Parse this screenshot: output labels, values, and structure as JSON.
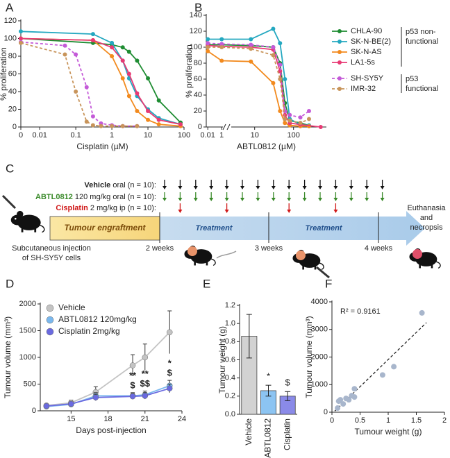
{
  "panel_labels": [
    "A",
    "B",
    "C",
    "D",
    "E",
    "F"
  ],
  "chart_data": [
    {
      "type": "line",
      "y_label": "% proliferation",
      "x_label": "Cisplatin (µM)",
      "xscale": "log",
      "xlim": [
        0.003,
        100
      ],
      "xticks": [
        {
          "value": 0,
          "label": "0"
        },
        0.01,
        0.1,
        1,
        10,
        100
      ],
      "ylim": [
        0,
        120
      ],
      "yticks": [
        0,
        20,
        40,
        60,
        80,
        100,
        120
      ],
      "series": [
        {
          "color": "#1e8c32",
          "dash": false,
          "x": [
            0,
            0.3,
            1,
            2,
            3,
            5,
            10,
            20,
            80
          ],
          "values": [
            100,
            95,
            93,
            90,
            85,
            75,
            55,
            30,
            5
          ]
        },
        {
          "color": "#24a8c0",
          "dash": false,
          "x": [
            0,
            0.3,
            1,
            2,
            3,
            5,
            10,
            20,
            80
          ],
          "values": [
            108,
            105,
            95,
            75,
            55,
            35,
            20,
            10,
            3
          ]
        },
        {
          "color": "#f28a1e",
          "dash": false,
          "x": [
            0,
            0.3,
            1,
            2,
            3,
            5,
            10,
            20,
            80
          ],
          "values": [
            100,
            98,
            80,
            55,
            35,
            18,
            8,
            3,
            1
          ]
        },
        {
          "color": "#e83a74",
          "dash": false,
          "x": [
            0,
            0.3,
            1,
            2,
            3,
            5,
            10,
            20,
            80
          ],
          "values": [
            100,
            98,
            90,
            75,
            60,
            38,
            18,
            8,
            3
          ]
        },
        {
          "color": "#c45ad8",
          "dash": true,
          "x": [
            0,
            0.05,
            0.1,
            0.2,
            0.3,
            0.5,
            1,
            2,
            5
          ],
          "values": [
            96,
            92,
            82,
            45,
            12,
            4,
            2,
            1,
            1
          ]
        },
        {
          "color": "#c8945a",
          "dash": true,
          "x": [
            0,
            0.05,
            0.1,
            0.2,
            0.3,
            0.5,
            1,
            2,
            5
          ],
          "values": [
            95,
            82,
            40,
            6,
            2,
            1,
            1,
            1,
            1
          ]
        }
      ]
    },
    {
      "type": "line",
      "y_label": "% proliferation",
      "x_label": "ABTL0812 (µM)",
      "xscale": "log",
      "xlim": [
        0.006,
        700
      ],
      "xlim_segments": [
        [
          0.006,
          1.5
        ],
        [
          2.5,
          700
        ]
      ],
      "xticks": [
        0.01,
        1,
        10,
        100
      ],
      "ylim": [
        0,
        140
      ],
      "yticks": [
        0,
        20,
        40,
        60,
        80,
        100,
        120,
        140
      ],
      "legend_groups": [
        [
          "p53 non-",
          "functional"
        ],
        [
          "p53",
          "functional"
        ]
      ],
      "series": [
        {
          "name": "CHLA-90",
          "color": "#1e8c32",
          "dash": false,
          "x": [
            0.01,
            1,
            8,
            30,
            45,
            60,
            80,
            150,
            250
          ],
          "values": [
            103,
            103,
            102,
            100,
            80,
            30,
            8,
            5,
            2
          ]
        },
        {
          "name": "SK-N-BE(2)",
          "color": "#24a8c0",
          "dash": false,
          "x": [
            0.01,
            1,
            8,
            30,
            45,
            60,
            80,
            150,
            250
          ],
          "values": [
            110,
            110,
            110,
            123,
            105,
            60,
            10,
            3,
            2
          ]
        },
        {
          "name": "SK-N-AS",
          "color": "#f28a1e",
          "dash": false,
          "x": [
            0.01,
            1,
            8,
            30,
            45,
            60,
            80,
            150,
            250
          ],
          "values": [
            95,
            83,
            82,
            55,
            20,
            5,
            2,
            1,
            1
          ]
        },
        {
          "name": "LA1-5s",
          "color": "#e83a74",
          "dash": false,
          "x": [
            0.01,
            1,
            8,
            30,
            45,
            60,
            80,
            150,
            500
          ],
          "values": [
            102,
            101,
            100,
            97,
            70,
            15,
            5,
            3,
            0
          ]
        },
        {
          "name": "SH-SY5Y",
          "color": "#c45ad8",
          "dash": true,
          "x": [
            0.01,
            1,
            8,
            30,
            45,
            60,
            80,
            150,
            250
          ],
          "values": [
            105,
            104,
            103,
            100,
            78,
            20,
            15,
            12,
            20
          ]
        },
        {
          "name": "IMR-32",
          "color": "#c8945a",
          "dash": true,
          "x": [
            0.01,
            1,
            8,
            30,
            45,
            60,
            80,
            150,
            250
          ],
          "values": [
            100,
            100,
            98,
            90,
            60,
            10,
            8,
            5,
            10
          ]
        }
      ]
    },
    {
      "type": "line",
      "y_label": "Tumour volume (mm³)",
      "x_label": "Days post-injection",
      "x": [
        13,
        15,
        17,
        20,
        21,
        23
      ],
      "xlim": [
        12.5,
        24
      ],
      "xticks": [
        15,
        18,
        21,
        24
      ],
      "ylim": [
        0,
        2000
      ],
      "yticks": [
        0,
        500,
        1000,
        1500,
        2000
      ],
      "series": [
        {
          "name": "Vehicle",
          "color": "#c4c4c4",
          "values": [
            100,
            150,
            350,
            850,
            1000,
            1470
          ],
          "errors": [
            30,
            50,
            100,
            200,
            250,
            400
          ]
        },
        {
          "name": "ABTL0812 120mg/kg",
          "color": "#7ab8ee",
          "values": [
            80,
            120,
            280,
            280,
            300,
            470
          ],
          "errors": [
            25,
            40,
            60,
            60,
            70,
            100
          ]
        },
        {
          "name": "Cisplatin 2mg/kg",
          "color": "#6a6ae0",
          "values": [
            90,
            130,
            250,
            270,
            280,
            420
          ],
          "errors": [
            25,
            40,
            60,
            50,
            60,
            80
          ]
        }
      ],
      "annotations": [
        {
          "x": 20,
          "labels": [
            "**",
            "$"
          ]
        },
        {
          "x": 21,
          "labels": [
            "**",
            "$$"
          ]
        },
        {
          "x": 23,
          "labels": [
            "*",
            "$"
          ]
        }
      ]
    },
    {
      "type": "bar",
      "y_label": "Tumour weight (g)",
      "categories": [
        "Vehicle",
        "ABTL0812",
        "Cisplatin"
      ],
      "values": [
        0.86,
        0.26,
        0.2
      ],
      "errors": [
        0.24,
        0.06,
        0.05
      ],
      "colors": [
        "#d2d2d2",
        "#8cc4f2",
        "#8a8ae8"
      ],
      "value_annotations": [
        null,
        "*",
        "$"
      ],
      "ylim": [
        0,
        1.2
      ],
      "yticks": [
        {
          "value": 0,
          "label": "0.0"
        },
        0.2,
        0.4,
        0.6,
        0.8,
        {
          "value": 1,
          "label": "1.0"
        },
        1.2
      ]
    },
    {
      "type": "scatter",
      "y_label": "Tumour volume (mm³)",
      "x_label": "Tumour weight (g)",
      "note": "R² = 0.9161",
      "trendline": "dashed",
      "color": "#a8b6cc",
      "x": [
        0.1,
        0.12,
        0.15,
        0.2,
        0.25,
        0.3,
        0.35,
        0.4,
        0.4,
        0.9,
        1.1,
        1.6
      ],
      "values": [
        150,
        400,
        450,
        300,
        500,
        450,
        600,
        850,
        550,
        1350,
        1650,
        3600
      ],
      "xlim": [
        0,
        2
      ],
      "xticks": [
        0,
        0.5,
        1,
        1.5,
        2
      ],
      "ylim": [
        0,
        4000
      ],
      "yticks": [
        0,
        1000,
        2000,
        3000,
        4000
      ]
    }
  ],
  "diagram": {
    "rows": [
      {
        "drug": "Vehicle",
        "dose": " oral (n = 10):"
      },
      {
        "drug": "ABTL0812",
        "dose": " 120 mg/kg oral (n = 10):"
      },
      {
        "drug": "Cisplatin",
        "dose": " 2 mg/kg ip (n = 10):"
      }
    ],
    "phases": [
      "Tumour engraftment",
      "Treatment",
      "Treatment"
    ],
    "weeks": [
      "2 weeks",
      "3 weeks",
      "4 weeks"
    ],
    "injection": [
      "Subcutaneous injection",
      "of SH-SY5Y cells"
    ],
    "end": [
      "Euthanasia",
      "and",
      "necropsis"
    ]
  }
}
